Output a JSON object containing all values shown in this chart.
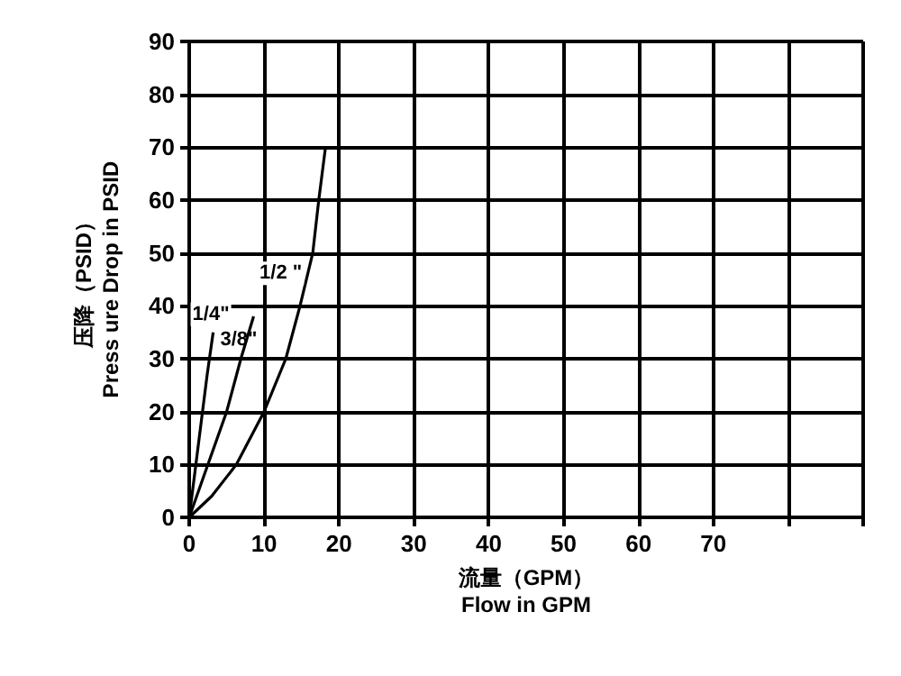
{
  "chart_data": {
    "type": "line",
    "xlabel": "流量（GPM）\nFlow in GPM",
    "ylabel": "压降（PSID）\nPress ure Drop in PSID",
    "xlim": [
      0,
      90
    ],
    "ylim": [
      0,
      90
    ],
    "xticks": [
      0,
      10,
      20,
      30,
      40,
      50,
      60,
      70,
      {
        "value": 80,
        "label": null
      },
      {
        "value": 90,
        "label": null
      }
    ],
    "yticks": [
      0,
      10,
      20,
      30,
      40,
      50,
      60,
      70,
      80,
      90
    ],
    "grid": true,
    "legend": false,
    "marker": "none",
    "line_style": "solid",
    "series": [
      {
        "name": "1/4\"",
        "color": "#000000",
        "x": [
          0,
          0.8,
          1.6,
          2.4,
          3.2
        ],
        "values": [
          0,
          9,
          18,
          27,
          35
        ]
      },
      {
        "name": "3/8\"",
        "color": "#000000",
        "x": [
          0,
          2.5,
          5,
          6.9,
          8.6
        ],
        "values": [
          0,
          10,
          20,
          30,
          38
        ]
      },
      {
        "name": "1/2 \"",
        "color": "#000000",
        "x": [
          0,
          3,
          6.3,
          10,
          12.9,
          14.8,
          16.5,
          17.3,
          18.2
        ],
        "values": [
          0,
          4,
          10,
          20,
          30,
          40,
          50,
          60,
          70
        ]
      }
    ]
  }
}
